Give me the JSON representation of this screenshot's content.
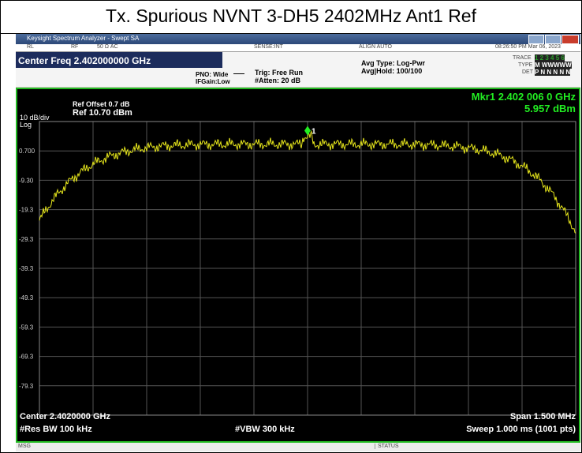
{
  "title": "Tx. Spurious NVNT 3-DH5 2402MHz Ant1 Ref",
  "window": {
    "title": "Keysight Spectrum Analyzer - Swept SA"
  },
  "status_row": {
    "rl": "RL",
    "rf": "RF",
    "input": "50 Ω  AC",
    "sense": "SENSE:INT",
    "align": "ALIGN AUTO",
    "datetime": "08:26:50 PM Mar 06, 2023"
  },
  "settings": {
    "center_freq": "Center Freq 2.402000000 GHz",
    "pno": "PNO: Wide",
    "ifgain": "IFGain:Low",
    "trig": "Trig: Free Run",
    "atten": "#Atten: 20 dB",
    "avg_type": "Avg Type: Log-Pwr",
    "avg_hold": "Avg|Hold: 100/100",
    "trace_label": "TRACE",
    "trace_values": "1 2 3 4 5 6",
    "type_label": "TYPE",
    "type_values": "M WWWWW",
    "det_label": "DET",
    "det_values": "P N N N N N"
  },
  "display": {
    "scale": "10 dB/div",
    "scale_type": "Log",
    "ref_offset": "Ref Offset 0.7 dB",
    "ref_level": "Ref 10.70 dBm",
    "marker_freq": "Mkr1 2.402 006 0 GHz",
    "marker_level": "5.957 dBm",
    "marker_id": "1",
    "y_labels": [
      "0.700",
      "-9.30",
      "-19.3",
      "-29.3",
      "-39.3",
      "-49.3",
      "-59.3",
      "-69.3",
      "-79.3"
    ],
    "center": "Center 2.4020000 GHz",
    "res_bw": "#Res BW 100 kHz",
    "vbw": "#VBW 300 kHz",
    "span": "Span 1.500 MHz",
    "sweep": "Sweep  1.000 ms (1001 pts)"
  },
  "statusbar": {
    "msg": "MSG",
    "status": "STATUS"
  }
}
